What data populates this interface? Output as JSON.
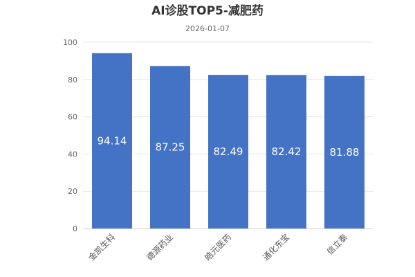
{
  "chart_data": {
    "type": "bar",
    "title": "AI诊股TOP5-减肥药",
    "subtitle": "2026-01-07",
    "categories": [
      "金凯生科",
      "德源药业",
      "皓元医药",
      "通化东宝",
      "信立泰"
    ],
    "values": [
      94.14,
      87.25,
      82.49,
      82.42,
      81.88
    ],
    "value_labels": [
      "94.14",
      "87.25",
      "82.49",
      "82.42",
      "81.88"
    ],
    "yticks": [
      "0",
      "20",
      "40",
      "60",
      "80",
      "100"
    ],
    "ylim": [
      0,
      100
    ],
    "grid": true,
    "legend": "none",
    "bar_color": "#4472c4"
  }
}
